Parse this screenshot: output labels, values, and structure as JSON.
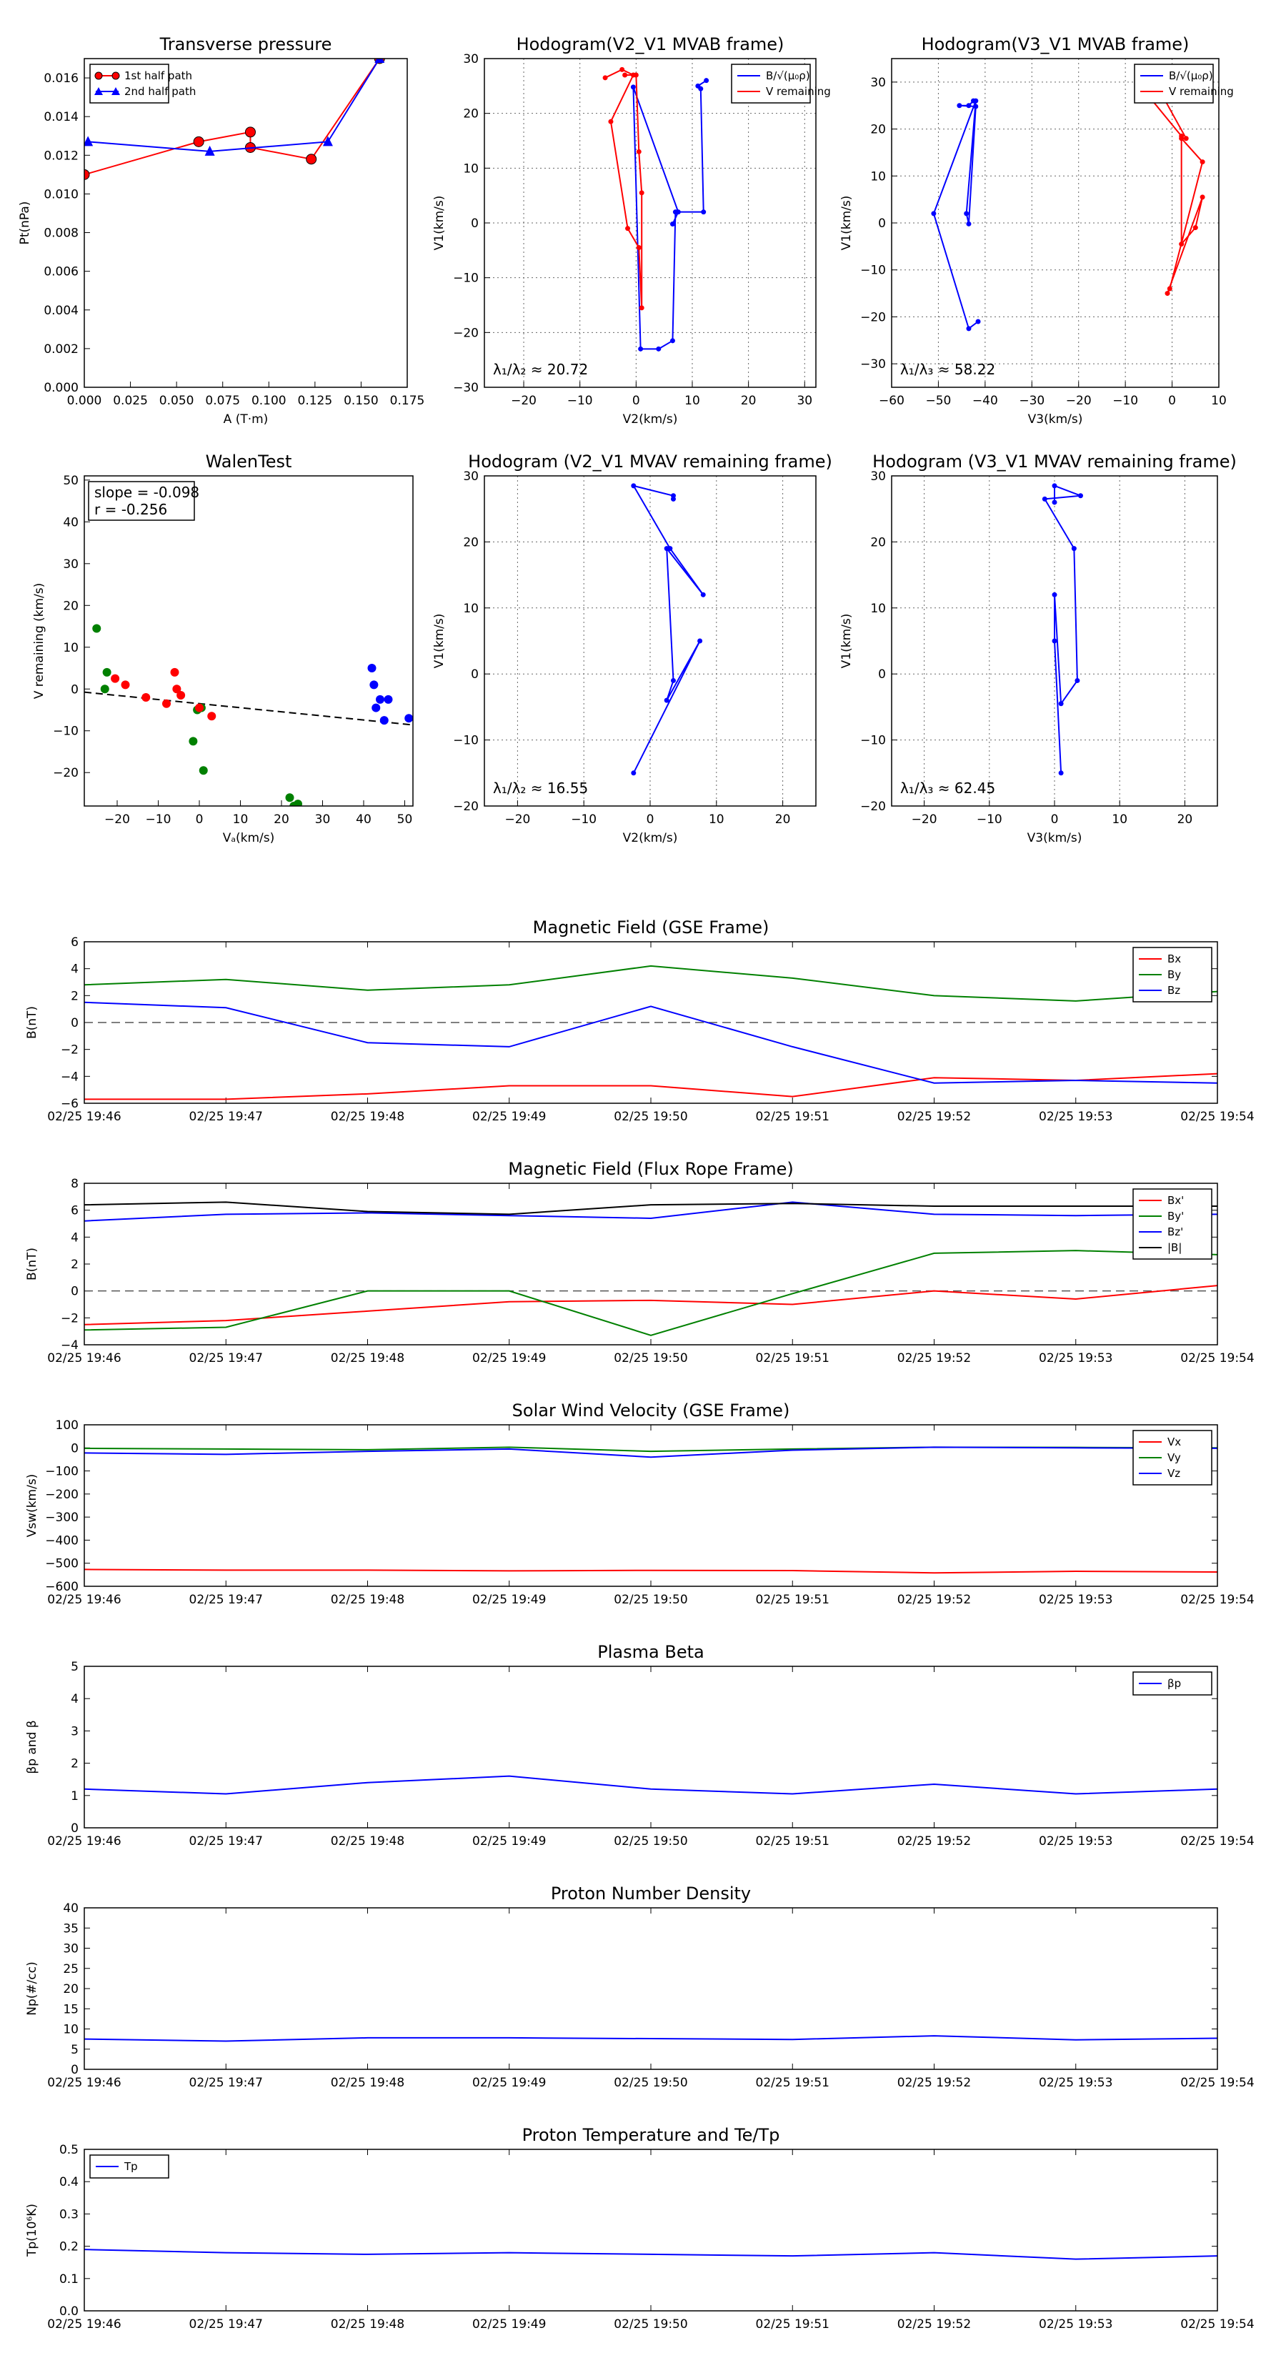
{
  "chart_data": [
    {
      "id": "tp",
      "type": "line",
      "title": "Transverse pressure",
      "xlabel": "A (T·m)",
      "ylabel": "Pt(nPa)",
      "xlim": [
        0,
        0.175
      ],
      "ylim": [
        0,
        0.017
      ],
      "xticks": [
        "0.000",
        "0.025",
        "0.050",
        "0.075",
        "0.100",
        "0.125",
        "0.150",
        "0.175"
      ],
      "yticks": [
        "0.000",
        "0.002",
        "0.004",
        "0.006",
        "0.008",
        "0.010",
        "0.012",
        "0.014",
        "0.016"
      ],
      "grid": false,
      "legend": "top-left",
      "series": [
        {
          "name": "1st half path",
          "color": "#ff0000",
          "marker": "circle",
          "x": [
            0.0,
            0.062,
            0.09,
            0.09,
            0.123,
            0.16
          ],
          "y": [
            0.011,
            0.0127,
            0.0132,
            0.0124,
            0.0118,
            0.017
          ]
        },
        {
          "name": "2nd half path",
          "color": "#0000ff",
          "marker": "triangle",
          "x": [
            0.16,
            0.132,
            0.068,
            0.002
          ],
          "y": [
            0.017,
            0.0127,
            0.0122,
            0.0127
          ]
        }
      ]
    },
    {
      "id": "hodo1",
      "type": "line",
      "title": "Hodogram(V2_V1 MVAB frame)",
      "xlabel": "V2(km/s)",
      "ylabel": "V1(km/s)",
      "xlim": [
        -27,
        32
      ],
      "ylim": [
        -30,
        30
      ],
      "xticks": [
        "−20",
        "−10",
        "0",
        "10",
        "20",
        "30"
      ],
      "yticks": [
        "−30",
        "−20",
        "−10",
        "0",
        "10",
        "20",
        "30"
      ],
      "grid": true,
      "legend": "top-right",
      "annotation": "λ₁/λ₂ ≈ 20.72",
      "series": [
        {
          "name": "B/√(μ₀ρ)",
          "color": "#0000ff",
          "x": [
            12.5,
            11,
            11.5,
            12,
            7,
            6.5,
            4,
            0.8,
            -0.5,
            7.5,
            6.5
          ],
          "y": [
            26,
            25,
            24.5,
            2,
            2,
            -21.5,
            -23,
            -23,
            24.8,
            2,
            -0.2
          ]
        },
        {
          "name": "V remaining",
          "color": "#ff0000",
          "x": [
            -5.5,
            -2.5,
            -0.5,
            -4.5,
            -1.5,
            0.5,
            1,
            1,
            0.5,
            0,
            -2
          ],
          "y": [
            26.5,
            28,
            27,
            18.5,
            -1,
            -4.5,
            -15.5,
            5.5,
            13,
            27,
            27
          ]
        }
      ]
    },
    {
      "id": "hodo2",
      "type": "line",
      "title": "Hodogram(V3_V1 MVAB frame)",
      "xlabel": "V3(km/s)",
      "ylabel": "V1(km/s)",
      "xlim": [
        -60,
        10
      ],
      "ylim": [
        -35,
        35
      ],
      "xticks": [
        "−60",
        "−50",
        "−40",
        "−30",
        "−20",
        "−10",
        "0",
        "10"
      ],
      "yticks": [
        "−30",
        "−20",
        "−10",
        "0",
        "10",
        "20",
        "30"
      ],
      "grid": true,
      "legend": "top-right",
      "annotation": "λ₁/λ₃ ≈ 58.22",
      "series": [
        {
          "name": "B/√(μ₀ρ)",
          "color": "#0000ff",
          "x": [
            -41.5,
            -43.5,
            -51,
            -42,
            -44,
            -43.5,
            -42,
            -45.5,
            -43.5,
            -42.5
          ],
          "y": [
            -21,
            -22.5,
            2,
            26,
            2,
            -0.2,
            24.8,
            25,
            25,
            26
          ]
        },
        {
          "name": "V remaining",
          "color": "#ff0000",
          "x": [
            -5,
            2,
            2,
            5,
            6.5,
            -1,
            -0.5,
            6.5,
            2,
            3,
            -2
          ],
          "y": [
            27,
            18.5,
            -4.5,
            -1,
            5.5,
            -15,
            -14,
            13,
            18,
            18,
            27
          ]
        }
      ]
    },
    {
      "id": "walen",
      "type": "scatter",
      "title": "WalenTest",
      "xlabel": "Vₐ(km/s)",
      "ylabel": "V remaining (km/s)",
      "xlim": [
        -28,
        52
      ],
      "ylim": [
        -28,
        51
      ],
      "xticks": [
        "−20",
        "−10",
        "0",
        "10",
        "20",
        "30",
        "40",
        "50"
      ],
      "yticks": [
        "−20",
        "−10",
        "0",
        "10",
        "20",
        "30",
        "40",
        "50"
      ],
      "grid": false,
      "annotation_lines": [
        "slope = -0.098",
        "r = -0.256"
      ],
      "fit_line": {
        "slope": -0.098,
        "intercept": -3.5
      },
      "series": [
        {
          "name": "",
          "color": "#008000",
          "x": [
            -25,
            -23,
            -22.5,
            -1.5,
            -0.5,
            0.5,
            1,
            22,
            23,
            24
          ],
          "y": [
            14.5,
            0,
            4,
            -12.5,
            -5,
            -4.5,
            -19.5,
            -26,
            -28,
            -27.5
          ]
        },
        {
          "name": "",
          "color": "#ff0000",
          "x": [
            -20.5,
            -18,
            -13,
            -8,
            -6,
            -5.5,
            -4.5,
            0,
            3
          ],
          "y": [
            2.5,
            1,
            -2,
            -3.5,
            4,
            0,
            -1.5,
            -4.5,
            -6.5
          ]
        },
        {
          "name": "",
          "color": "#0000ff",
          "x": [
            42,
            42.5,
            43,
            44,
            45,
            46,
            51
          ],
          "y": [
            5,
            1,
            -4.5,
            -2.5,
            -7.5,
            -2.5,
            -7
          ]
        }
      ]
    },
    {
      "id": "hodo3",
      "type": "line",
      "title": "Hodogram (V2_V1 MVAV remaining frame)",
      "xlabel": "V2(km/s)",
      "ylabel": "V1(km/s)",
      "xlim": [
        -25,
        25
      ],
      "ylim": [
        -20,
        30
      ],
      "xticks": [
        "−20",
        "−10",
        "0",
        "10",
        "20"
      ],
      "yticks": [
        "−20",
        "−10",
        "0",
        "10",
        "20",
        "30"
      ],
      "grid": true,
      "annotation": "λ₁/λ₂ ≈ 16.55",
      "series": [
        {
          "name": "",
          "color": "#0000ff",
          "x": [
            -2.5,
            7.5,
            2.5,
            3.5,
            2.5,
            8,
            3,
            -2.5,
            3.5,
            3.5
          ],
          "y": [
            -15,
            5,
            -4,
            -1,
            19,
            12,
            19,
            28.5,
            27,
            26.5
          ]
        }
      ]
    },
    {
      "id": "hodo4",
      "type": "line",
      "title": "Hodogram (V3_V1 MVAV remaining frame)",
      "xlabel": "V3(km/s)",
      "ylabel": "V1(km/s)",
      "xlim": [
        -25,
        25
      ],
      "ylim": [
        -20,
        30
      ],
      "xticks": [
        "−20",
        "−10",
        "0",
        "10",
        "20"
      ],
      "yticks": [
        "−20",
        "−10",
        "0",
        "10",
        "20",
        "30"
      ],
      "grid": true,
      "annotation": "λ₁/λ₃ ≈ 62.45",
      "series": [
        {
          "name": "",
          "color": "#0000ff",
          "x": [
            1,
            0,
            0,
            1,
            3.5,
            3,
            -1.5,
            4,
            0,
            0
          ],
          "y": [
            -15,
            5,
            12,
            -4.5,
            -1,
            19,
            26.5,
            27,
            28.5,
            26
          ]
        }
      ]
    },
    {
      "id": "bgse",
      "type": "line",
      "title": "Magnetic Field (GSE Frame)",
      "xlabel": "",
      "ylabel": "B(nT)",
      "x": [
        "02/25 19:46",
        "02/25 19:47",
        "02/25 19:48",
        "02/25 19:49",
        "02/25 19:50",
        "02/25 19:51",
        "02/25 19:52",
        "02/25 19:53",
        "02/25 19:54"
      ],
      "ylim": [
        -6,
        6
      ],
      "yticks": [
        "−6",
        "−4",
        "−2",
        "0",
        "2",
        "4",
        "6"
      ],
      "zero_line": true,
      "legend": "top-right",
      "series": [
        {
          "name": "Bx",
          "color": "#ff0000",
          "values": [
            -5.7,
            -5.7,
            -5.3,
            -4.7,
            -4.7,
            -5.5,
            -4.1,
            -4.3,
            -3.8
          ]
        },
        {
          "name": "By",
          "color": "#008000",
          "values": [
            2.8,
            3.2,
            2.4,
            2.8,
            4.2,
            3.3,
            2.0,
            1.6,
            2.3
          ]
        },
        {
          "name": "Bz",
          "color": "#0000ff",
          "values": [
            1.5,
            1.1,
            -1.5,
            -1.8,
            1.2,
            -1.8,
            -4.5,
            -4.3,
            -4.5
          ]
        }
      ]
    },
    {
      "id": "bfr",
      "type": "line",
      "title": "Magnetic Field (Flux Rope Frame)",
      "xlabel": "",
      "ylabel": "B(nT)",
      "x": [
        "02/25 19:46",
        "02/25 19:47",
        "02/25 19:48",
        "02/25 19:49",
        "02/25 19:50",
        "02/25 19:51",
        "02/25 19:52",
        "02/25 19:53",
        "02/25 19:54"
      ],
      "ylim": [
        -4,
        8
      ],
      "yticks": [
        "−4",
        "−2",
        "0",
        "2",
        "4",
        "6",
        "8"
      ],
      "zero_line": true,
      "legend": "top-right",
      "series": [
        {
          "name": "Bx'",
          "color": "#ff0000",
          "values": [
            -2.5,
            -2.2,
            -1.5,
            -0.8,
            -0.7,
            -1.0,
            0.0,
            -0.6,
            0.4
          ]
        },
        {
          "name": "By'",
          "color": "#008000",
          "values": [
            -2.9,
            -2.7,
            0.0,
            0.0,
            -3.3,
            -0.2,
            2.8,
            3.0,
            2.7
          ]
        },
        {
          "name": "Bz'",
          "color": "#0000ff",
          "values": [
            5.2,
            5.7,
            5.8,
            5.6,
            5.4,
            6.6,
            5.7,
            5.6,
            5.7
          ]
        },
        {
          "name": "|B|",
          "color": "#000000",
          "values": [
            6.4,
            6.6,
            5.9,
            5.7,
            6.4,
            6.5,
            6.3,
            6.3,
            6.3
          ]
        }
      ]
    },
    {
      "id": "vsw",
      "type": "line",
      "title": "Solar Wind Velocity (GSE Frame)",
      "xlabel": "",
      "ylabel": "Vsw(km/s)",
      "x": [
        "02/25 19:46",
        "02/25 19:47",
        "02/25 19:48",
        "02/25 19:49",
        "02/25 19:50",
        "02/25 19:51",
        "02/25 19:52",
        "02/25 19:53",
        "02/25 19:54"
      ],
      "ylim": [
        -600,
        100
      ],
      "yticks": [
        "−600",
        "−500",
        "−400",
        "−300",
        "−200",
        "−100",
        "0",
        "100"
      ],
      "legend": "top-right",
      "series": [
        {
          "name": "Vx",
          "color": "#ff0000",
          "values": [
            -527,
            -530,
            -530,
            -533,
            -531,
            -532,
            -542,
            -535,
            -538
          ]
        },
        {
          "name": "Vy",
          "color": "#008000",
          "values": [
            -2,
            -5,
            -8,
            3,
            -15,
            -5,
            3,
            2,
            0
          ]
        },
        {
          "name": "Vz",
          "color": "#0000ff",
          "values": [
            -22,
            -28,
            -15,
            -5,
            -40,
            -10,
            3,
            0,
            -2
          ]
        }
      ]
    },
    {
      "id": "beta",
      "type": "line",
      "title": "Plasma Beta",
      "xlabel": "",
      "ylabel": "βp and β",
      "x": [
        "02/25 19:46",
        "02/25 19:47",
        "02/25 19:48",
        "02/25 19:49",
        "02/25 19:50",
        "02/25 19:51",
        "02/25 19:52",
        "02/25 19:53",
        "02/25 19:54"
      ],
      "ylim": [
        0,
        5
      ],
      "yticks": [
        "0",
        "1",
        "2",
        "3",
        "4",
        "5"
      ],
      "legend": "top-right",
      "series": [
        {
          "name": "βp",
          "color": "#0000ff",
          "values": [
            1.2,
            1.05,
            1.4,
            1.6,
            1.2,
            1.05,
            1.35,
            1.05,
            1.2
          ]
        }
      ]
    },
    {
      "id": "np",
      "type": "line",
      "title": "Proton Number Density",
      "xlabel": "",
      "ylabel": "Np(#/cc)",
      "x": [
        "02/25 19:46",
        "02/25 19:47",
        "02/25 19:48",
        "02/25 19:49",
        "02/25 19:50",
        "02/25 19:51",
        "02/25 19:52",
        "02/25 19:53",
        "02/25 19:54"
      ],
      "ylim": [
        0,
        40
      ],
      "yticks": [
        "0",
        "5",
        "10",
        "15",
        "20",
        "25",
        "30",
        "35",
        "40"
      ],
      "series": [
        {
          "name": "",
          "color": "#0000ff",
          "values": [
            7.5,
            7.0,
            7.8,
            7.8,
            7.6,
            7.4,
            8.3,
            7.3,
            7.7
          ]
        }
      ]
    },
    {
      "id": "tpr",
      "type": "line",
      "title": "Proton Temperature and Te/Tp",
      "xlabel": "",
      "ylabel": "Tp(10⁶K)",
      "x": [
        "02/25 19:46",
        "02/25 19:47",
        "02/25 19:48",
        "02/25 19:49",
        "02/25 19:50",
        "02/25 19:51",
        "02/25 19:52",
        "02/25 19:53",
        "02/25 19:54"
      ],
      "ylim": [
        0,
        0.5
      ],
      "yticks": [
        "0.0",
        "0.1",
        "0.2",
        "0.3",
        "0.4",
        "0.5"
      ],
      "legend": "top-left",
      "series": [
        {
          "name": "Tp",
          "color": "#0000ff",
          "values": [
            0.19,
            0.18,
            0.175,
            0.18,
            0.175,
            0.17,
            0.18,
            0.16,
            0.17
          ]
        }
      ]
    }
  ]
}
